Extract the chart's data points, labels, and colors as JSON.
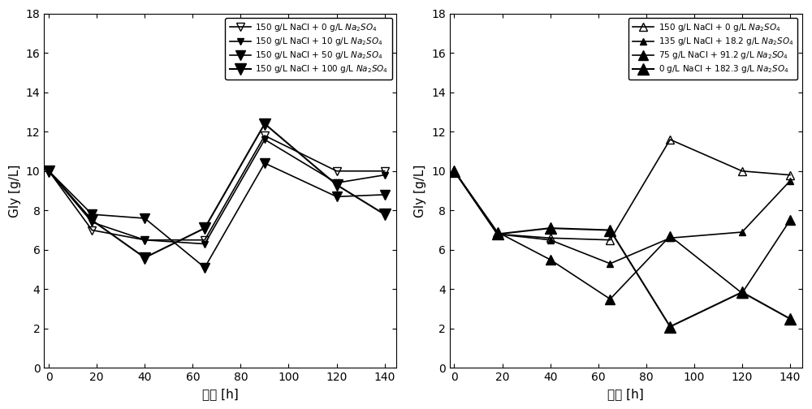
{
  "left": {
    "series": [
      {
        "label": "150 g/L NaCl + 0 g/L $Na_2SO_4$",
        "x": [
          0,
          18,
          40,
          65,
          90,
          120,
          140
        ],
        "y": [
          10.0,
          7.0,
          6.5,
          6.5,
          11.8,
          10.0,
          10.0
        ],
        "marker": "v",
        "fillstyle": "none",
        "color": "black",
        "linewidth": 1.2,
        "markersize": 7
      },
      {
        "label": "150 g/L NaCl + 10 g/L $Na_2SO_4$",
        "x": [
          0,
          18,
          40,
          65,
          90,
          120,
          140
        ],
        "y": [
          10.0,
          7.4,
          6.5,
          6.3,
          11.6,
          9.4,
          9.8
        ],
        "marker": "v",
        "fillstyle": "full",
        "color": "black",
        "linewidth": 1.2,
        "markersize": 6
      },
      {
        "label": "150 g/L NaCl + 50 g/L $Na_2SO_4$",
        "x": [
          0,
          18,
          40,
          65,
          90,
          120,
          140
        ],
        "y": [
          10.0,
          7.8,
          7.6,
          5.1,
          10.4,
          8.7,
          8.8
        ],
        "marker": "v",
        "fillstyle": "full",
        "color": "black",
        "linewidth": 1.2,
        "markersize": 8
      },
      {
        "label": "150 g/L NaCl + 100 g/L $Na_2SO_4$",
        "x": [
          0,
          18,
          40,
          65,
          90,
          120,
          140
        ],
        "y": [
          10.0,
          7.5,
          5.6,
          7.1,
          12.4,
          9.3,
          7.8
        ],
        "marker": "v",
        "fillstyle": "full",
        "color": "black",
        "linewidth": 1.5,
        "markersize": 10
      }
    ],
    "xlabel": "时间 [h]",
    "ylabel": "Gly [g/L]",
    "ylim": [
      0,
      18
    ],
    "xlim": [
      -2,
      145
    ],
    "yticks": [
      0,
      2,
      4,
      6,
      8,
      10,
      12,
      14,
      16,
      18
    ],
    "xticks": [
      0,
      20,
      40,
      60,
      80,
      100,
      120,
      140
    ]
  },
  "right": {
    "series": [
      {
        "label": "150 g/L NaCl + 0 g/L $Na_2SO_4$",
        "x": [
          0,
          18,
          40,
          65,
          90,
          120,
          140
        ],
        "y": [
          10.0,
          6.8,
          6.6,
          6.5,
          11.6,
          10.0,
          9.8
        ],
        "marker": "^",
        "fillstyle": "none",
        "color": "black",
        "linewidth": 1.2,
        "markersize": 7
      },
      {
        "label": "135 g/L NaCl + 18.2 g/L $Na_2SO_4$",
        "x": [
          0,
          18,
          40,
          65,
          90,
          120,
          140
        ],
        "y": [
          10.0,
          6.8,
          6.5,
          5.3,
          6.6,
          6.9,
          9.5
        ],
        "marker": "^",
        "fillstyle": "full",
        "color": "black",
        "linewidth": 1.2,
        "markersize": 6
      },
      {
        "label": "75 g/L NaCl + 91.2 g/L $Na_2SO_4$",
        "x": [
          0,
          18,
          40,
          65,
          90,
          120,
          140
        ],
        "y": [
          10.0,
          6.9,
          5.5,
          3.5,
          6.7,
          3.8,
          7.5
        ],
        "marker": "^",
        "fillstyle": "full",
        "color": "black",
        "linewidth": 1.2,
        "markersize": 8
      },
      {
        "label": "0 g/L NaCl + 182.3 g/L $Na_2SO_4$",
        "x": [
          0,
          18,
          40,
          65,
          90,
          120,
          140
        ],
        "y": [
          10.0,
          6.8,
          7.1,
          7.0,
          2.1,
          3.85,
          2.5
        ],
        "marker": "^",
        "fillstyle": "full",
        "color": "black",
        "linewidth": 1.5,
        "markersize": 10
      }
    ],
    "xlabel": "时间 [h]",
    "ylabel": "Gly [g/L]",
    "ylim": [
      0,
      18
    ],
    "xlim": [
      -2,
      145
    ],
    "yticks": [
      0,
      2,
      4,
      6,
      8,
      10,
      12,
      14,
      16,
      18
    ],
    "xticks": [
      0,
      20,
      40,
      60,
      80,
      100,
      120,
      140
    ]
  },
  "background_color": "#ffffff",
  "legend_fontsize": 7.5,
  "axis_fontsize": 11,
  "tick_fontsize": 10
}
